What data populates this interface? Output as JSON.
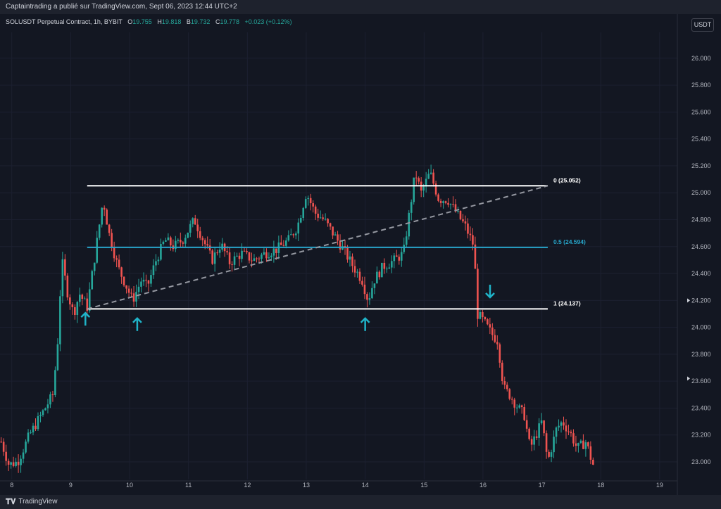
{
  "header": {
    "publisher_line": "Captaintrading a publié sur TradingView.com, Sept 06, 2023 12:44 UTC+2"
  },
  "symbol": {
    "name": "SOLUSDT Perpetual Contract, 1h, BYBIT",
    "o_label": "O",
    "o_value": "19.755",
    "h_label": "H",
    "h_value": "19.818",
    "l_label": "B",
    "l_value": "19.732",
    "c_label": "C",
    "c_value": "19.778",
    "change": "+0.023 (+0.12%)"
  },
  "currency_button": "USDT",
  "footer": {
    "brand": "TradingView"
  },
  "colors": {
    "background": "#131722",
    "up": "#26a69a",
    "down": "#ef5350",
    "level_white": "#ffffff",
    "level_mid": "#27a4c8",
    "arrow": "#1fb3c8"
  },
  "chart_data": {
    "type": "candlestick",
    "x_ticks": [
      "8",
      "9",
      "10",
      "11",
      "12",
      "13",
      "14",
      "15",
      "16",
      "17",
      "18",
      "19"
    ],
    "y_ticks": [
      "26.000",
      "25.800",
      "25.600",
      "25.400",
      "25.200",
      "25.000",
      "24.800",
      "24.600",
      "24.400",
      "24.200",
      "24.000",
      "23.800",
      "23.600",
      "23.400",
      "23.200",
      "23.000"
    ],
    "ylim": [
      22.88,
      26.14
    ],
    "xlim": [
      7.8,
      19.3
    ],
    "levels": [
      {
        "label": "0 (25.052)",
        "value": 25.052,
        "x_start": 9.28,
        "x_end": 17.1,
        "color": "#ffffff"
      },
      {
        "label": "0.5 (24.594)",
        "value": 24.594,
        "x_start": 9.28,
        "x_end": 17.1,
        "color": "#27a4c8"
      },
      {
        "label": "1 (24.137)",
        "value": 24.137,
        "x_start": 9.28,
        "x_end": 17.1,
        "color": "#ffffff"
      }
    ],
    "trendline": {
      "x1": 9.28,
      "y1": 24.137,
      "x2": 17.1,
      "y2": 25.052,
      "style": "dashed"
    },
    "arrows": [
      {
        "x": 9.25,
        "y": 24.06,
        "direction": "up"
      },
      {
        "x": 10.13,
        "y": 24.02,
        "direction": "up"
      },
      {
        "x": 14.0,
        "y": 24.02,
        "direction": "up"
      },
      {
        "x": 16.12,
        "y": 24.27,
        "direction": "down"
      }
    ],
    "candles_hourly_step": 0.0417,
    "path": [
      [
        7.82,
        23.15
      ],
      [
        7.95,
        22.98
      ],
      [
        8.1,
        23.0
      ],
      [
        8.3,
        23.2
      ],
      [
        8.5,
        23.35
      ],
      [
        8.7,
        23.5
      ],
      [
        8.78,
        23.9
      ],
      [
        8.85,
        24.5
      ],
      [
        8.95,
        24.25
      ],
      [
        9.05,
        24.1
      ],
      [
        9.15,
        24.25
      ],
      [
        9.28,
        24.15
      ],
      [
        9.4,
        24.5
      ],
      [
        9.55,
        24.95
      ],
      [
        9.65,
        24.7
      ],
      [
        9.8,
        24.45
      ],
      [
        9.95,
        24.3
      ],
      [
        10.05,
        24.2
      ],
      [
        10.2,
        24.35
      ],
      [
        10.3,
        24.3
      ],
      [
        10.45,
        24.5
      ],
      [
        10.6,
        24.65
      ],
      [
        10.75,
        24.6
      ],
      [
        10.9,
        24.65
      ],
      [
        11.1,
        24.8
      ],
      [
        11.25,
        24.65
      ],
      [
        11.4,
        24.5
      ],
      [
        11.55,
        24.62
      ],
      [
        11.7,
        24.48
      ],
      [
        11.9,
        24.55
      ],
      [
        12.1,
        24.5
      ],
      [
        12.3,
        24.55
      ],
      [
        12.5,
        24.58
      ],
      [
        12.7,
        24.65
      ],
      [
        12.85,
        24.75
      ],
      [
        13.0,
        25.0
      ],
      [
        13.15,
        24.85
      ],
      [
        13.3,
        24.8
      ],
      [
        13.45,
        24.7
      ],
      [
        13.6,
        24.6
      ],
      [
        13.8,
        24.45
      ],
      [
        13.95,
        24.35
      ],
      [
        14.05,
        24.2
      ],
      [
        14.15,
        24.35
      ],
      [
        14.3,
        24.45
      ],
      [
        14.5,
        24.5
      ],
      [
        14.65,
        24.55
      ],
      [
        14.75,
        24.85
      ],
      [
        14.85,
        25.15
      ],
      [
        14.95,
        25.0
      ],
      [
        15.1,
        25.15
      ],
      [
        15.25,
        24.95
      ],
      [
        15.4,
        24.95
      ],
      [
        15.55,
        24.85
      ],
      [
        15.7,
        24.75
      ],
      [
        15.85,
        24.6
      ],
      [
        15.9,
        24.1
      ],
      [
        16.0,
        24.05
      ],
      [
        16.15,
        23.95
      ],
      [
        16.25,
        23.9
      ],
      [
        16.35,
        23.55
      ],
      [
        16.45,
        23.5
      ],
      [
        16.6,
        23.4
      ],
      [
        16.7,
        23.35
      ],
      [
        16.8,
        23.1
      ],
      [
        16.9,
        23.2
      ],
      [
        17.0,
        23.3
      ],
      [
        17.1,
        23.0
      ],
      [
        17.25,
        23.25
      ],
      [
        17.35,
        23.3
      ],
      [
        17.5,
        23.2
      ],
      [
        17.6,
        23.1
      ],
      [
        17.75,
        23.15
      ],
      [
        17.85,
        23.0
      ],
      [
        17.9,
        22.95
      ]
    ]
  }
}
